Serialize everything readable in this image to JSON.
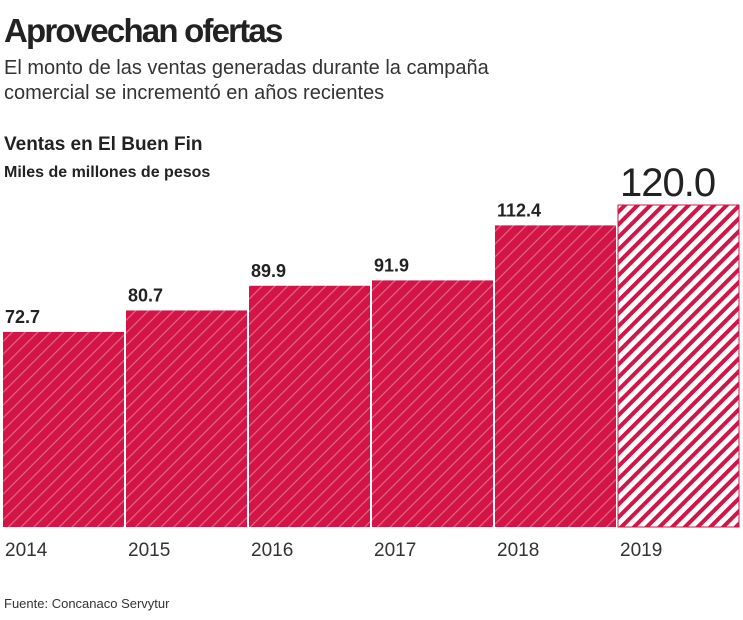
{
  "chart_data": {
    "type": "bar",
    "title": "Aprovechan ofertas",
    "subtitle": [
      "El monto de las ventas generadas durante la campaña",
      "comercial se incrementó en años recientes"
    ],
    "chart_title": "Ventas en El Buen Fin",
    "unit": "Miles de millones de pesos",
    "source": "Fuente: Concanaco Servytur",
    "categories": [
      "2014",
      "2015",
      "2016",
      "2017",
      "2018",
      "2019"
    ],
    "values": [
      72.7,
      80.7,
      89.9,
      91.9,
      112.4,
      120.0
    ],
    "value_labels": [
      "72.7",
      "80.7",
      "89.9",
      "91.9",
      "112.4",
      "120.0"
    ],
    "color": "#d31447",
    "bar_styles": [
      "solid",
      "solid",
      "solid",
      "solid",
      "solid",
      "hatched"
    ]
  }
}
